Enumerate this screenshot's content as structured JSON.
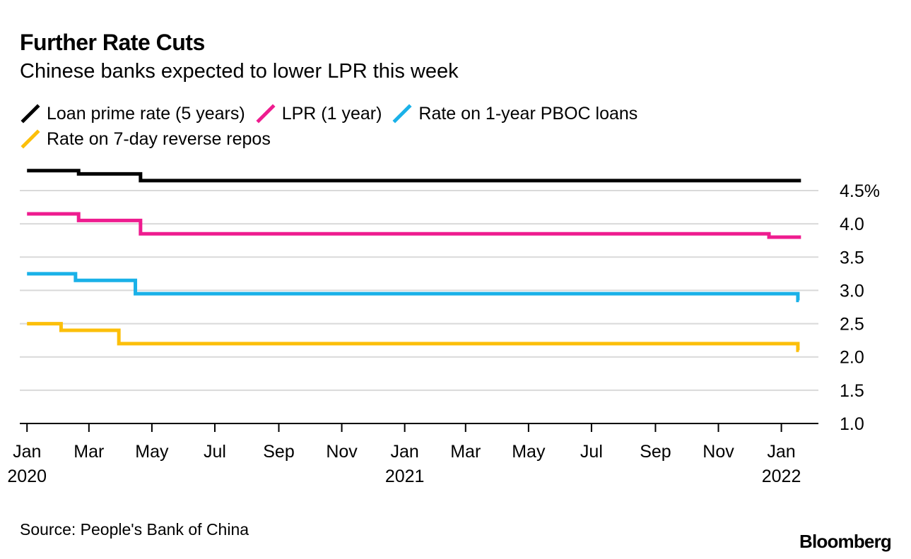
{
  "title": "Further Rate Cuts",
  "subtitle": "Chinese banks expected to lower LPR this week",
  "source": "Source: People's Bank of China",
  "brand": "Bloomberg",
  "chart_data": {
    "type": "line",
    "title": "Further Rate Cuts",
    "subtitle": "Chinese banks expected to lower LPR this week",
    "xlabel": "",
    "ylabel": "",
    "ylim": [
      1.0,
      4.5
    ],
    "xlim": [
      "2019-12-25",
      "2022-01-28"
    ],
    "y_ticks": [
      {
        "value": 4.5,
        "label": "4.5%"
      },
      {
        "value": 4.0,
        "label": "4.0"
      },
      {
        "value": 3.5,
        "label": "3.5"
      },
      {
        "value": 3.0,
        "label": "3.0"
      },
      {
        "value": 2.5,
        "label": "2.5"
      },
      {
        "value": 2.0,
        "label": "2.0"
      },
      {
        "value": 1.5,
        "label": "1.5"
      },
      {
        "value": 1.0,
        "label": "1.0"
      }
    ],
    "x_ticks": [
      {
        "date": "2020-01-01",
        "label": "Jan",
        "year": "2020"
      },
      {
        "date": "2020-03-01",
        "label": "Mar"
      },
      {
        "date": "2020-05-01",
        "label": "May"
      },
      {
        "date": "2020-07-01",
        "label": "Jul"
      },
      {
        "date": "2020-09-01",
        "label": "Sep"
      },
      {
        "date": "2020-11-01",
        "label": "Nov"
      },
      {
        "date": "2021-01-01",
        "label": "Jan",
        "year": "2021"
      },
      {
        "date": "2021-03-01",
        "label": "Mar"
      },
      {
        "date": "2021-05-01",
        "label": "May"
      },
      {
        "date": "2021-07-01",
        "label": "Jul"
      },
      {
        "date": "2021-09-01",
        "label": "Sep"
      },
      {
        "date": "2021-11-01",
        "label": "Nov"
      },
      {
        "date": "2022-01-01",
        "label": "Jan",
        "year": "2022"
      }
    ],
    "grid": true,
    "legend_position": "top-left",
    "series": [
      {
        "name": "Loan prime rate (5 years)",
        "color": "#000000",
        "step": true,
        "points": [
          {
            "x": "2020-01-01",
            "y": 4.8
          },
          {
            "x": "2020-02-20",
            "y": 4.75
          },
          {
            "x": "2020-04-20",
            "y": 4.65
          },
          {
            "x": "2022-01-20",
            "y": 4.65
          }
        ]
      },
      {
        "name": "LPR (1 year)",
        "color": "#ee1c8f",
        "step": true,
        "points": [
          {
            "x": "2020-01-01",
            "y": 4.15
          },
          {
            "x": "2020-02-20",
            "y": 4.05
          },
          {
            "x": "2020-04-20",
            "y": 3.85
          },
          {
            "x": "2021-12-20",
            "y": 3.8
          },
          {
            "x": "2022-01-20",
            "y": 3.8
          }
        ]
      },
      {
        "name": "Rate on 1-year PBOC loans",
        "color": "#1ab1e8",
        "step": true,
        "points": [
          {
            "x": "2020-01-01",
            "y": 3.25
          },
          {
            "x": "2020-02-17",
            "y": 3.15
          },
          {
            "x": "2020-04-15",
            "y": 2.95
          },
          {
            "x": "2022-01-17",
            "y": 2.85
          },
          {
            "x": "2022-01-18",
            "y": 2.85
          }
        ]
      },
      {
        "name": "Rate on 7-day reverse repos",
        "color": "#fcbf0a",
        "step": true,
        "points": [
          {
            "x": "2020-01-01",
            "y": 2.5
          },
          {
            "x": "2020-02-03",
            "y": 2.4
          },
          {
            "x": "2020-03-30",
            "y": 2.2
          },
          {
            "x": "2022-01-17",
            "y": 2.1
          },
          {
            "x": "2022-01-18",
            "y": 2.1
          }
        ]
      }
    ]
  }
}
